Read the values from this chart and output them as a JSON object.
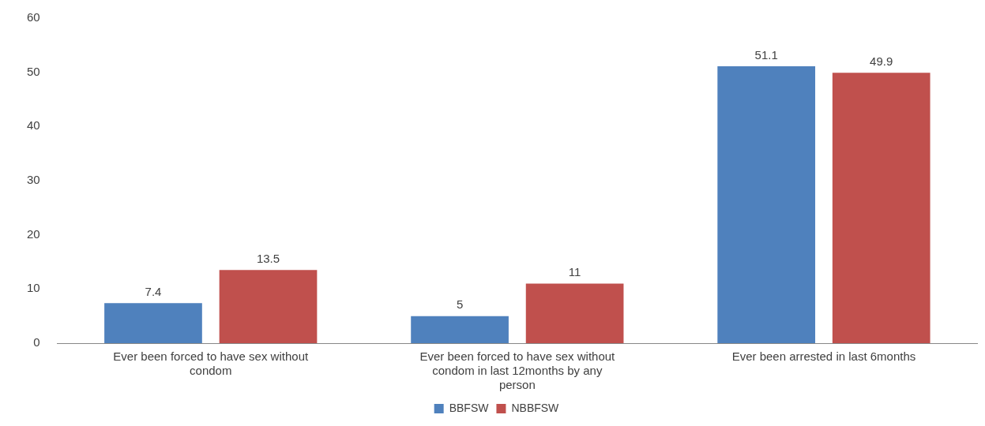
{
  "chart_data": {
    "type": "bar",
    "categories": [
      "Ever been forced to have sex without condom",
      "Ever been forced to have sex without condom in last 12months by any person",
      "Ever been arrested in last 6months"
    ],
    "series": [
      {
        "name": "BBFSW",
        "color": "#4f81bd",
        "values": [
          7.4,
          5,
          51.1
        ]
      },
      {
        "name": "NBBFSW",
        "color": "#c0504d",
        "values": [
          13.5,
          11,
          49.9
        ]
      }
    ],
    "ylim": [
      0,
      60
    ],
    "yticks": [
      0,
      10,
      20,
      30,
      40,
      50,
      60
    ],
    "grid": false,
    "legend": "bottom",
    "data_labels": true
  }
}
